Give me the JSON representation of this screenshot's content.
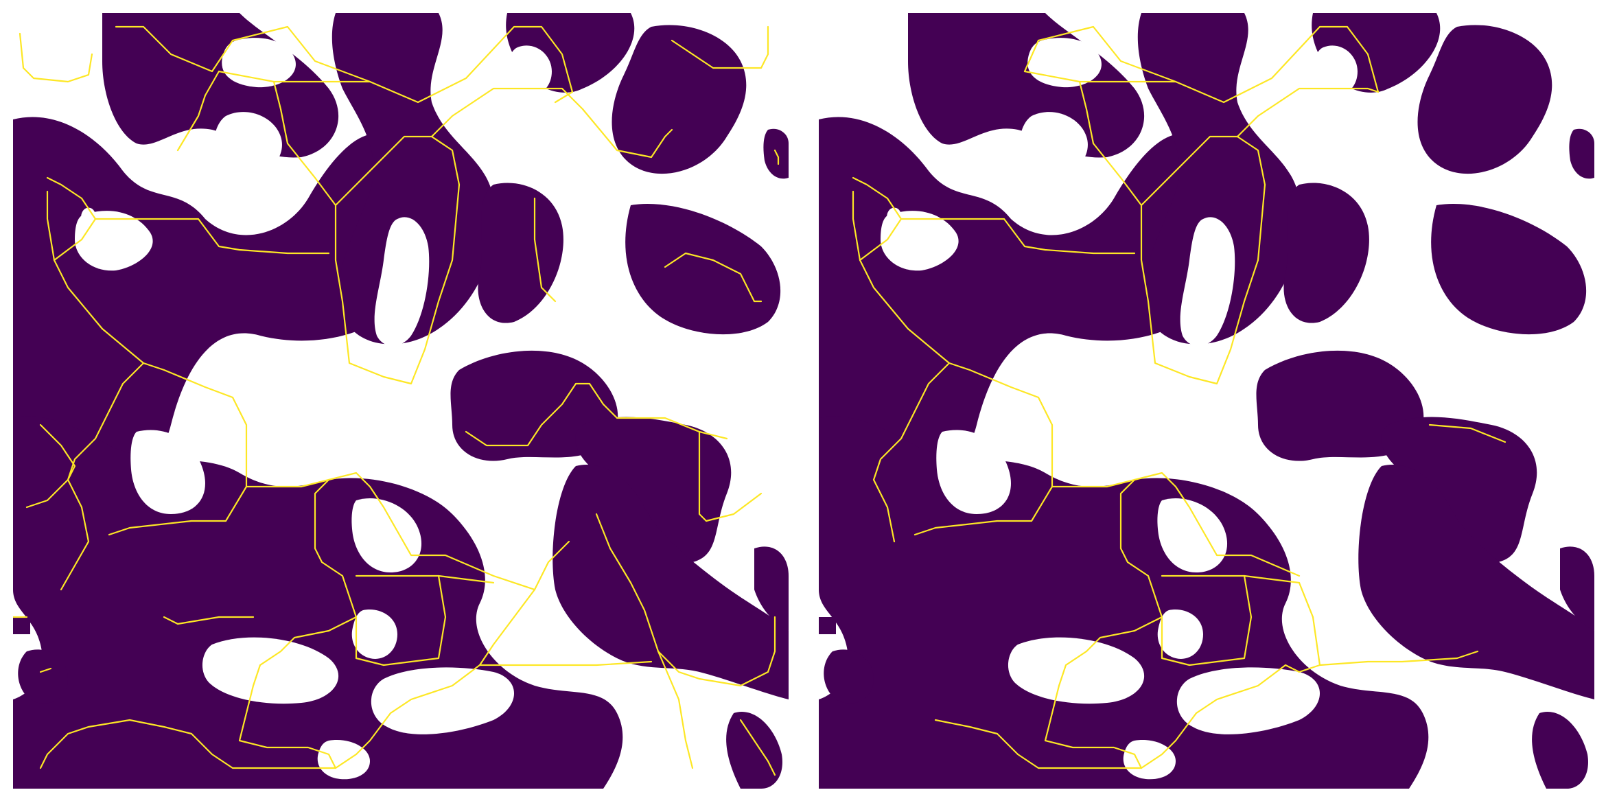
{
  "figure": {
    "description_visible_text": "",
    "colors": {
      "background_phase": "#ffffff",
      "material_phase": "#440154",
      "skeleton": "#fde725"
    }
  },
  "panels": [
    {
      "id": "left",
      "content": "binary-mask-with-full-skeleton"
    },
    {
      "id": "right",
      "content": "binary-mask-with-pruned-skeleton"
    }
  ]
}
